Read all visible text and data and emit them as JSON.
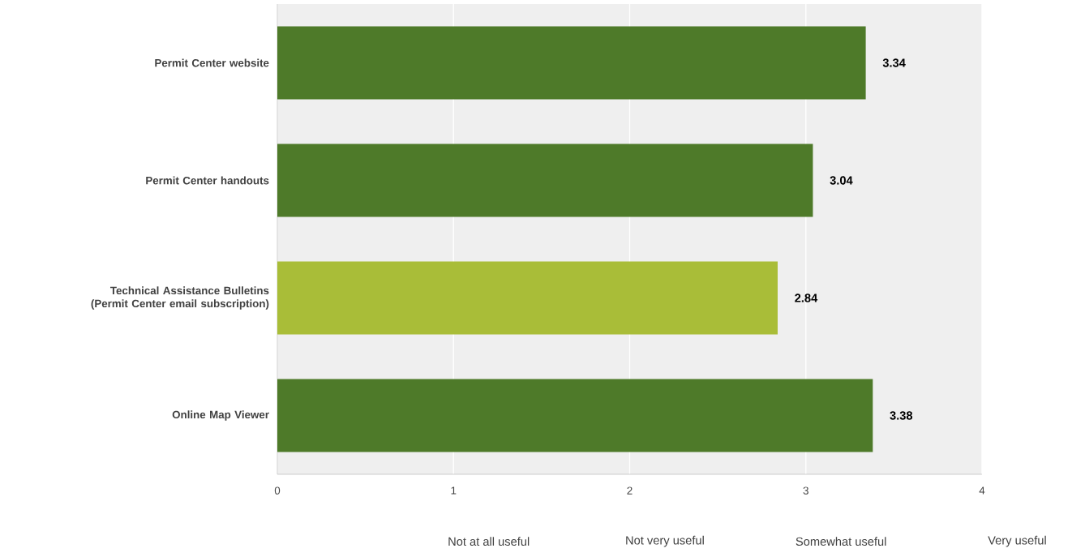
{
  "chart_data": {
    "type": "bar",
    "orientation": "horizontal",
    "categories": [
      "Permit Center website",
      "Permit Center handouts",
      "Technical Assistance Bulletins (Permit Center email subscription)",
      "Online Map Viewer"
    ],
    "values": [
      3.34,
      3.04,
      2.84,
      3.38
    ],
    "colors": [
      "#4e7a29",
      "#4e7a29",
      "#a9bd38",
      "#4e7a29"
    ],
    "xlim": [
      0,
      4
    ],
    "xticks": [
      0,
      1,
      2,
      3,
      4
    ],
    "grid": "x",
    "data_labels": true,
    "annotations": [
      "Not at all useful",
      "Not very useful",
      "Somewhat useful",
      "Very useful"
    ]
  }
}
